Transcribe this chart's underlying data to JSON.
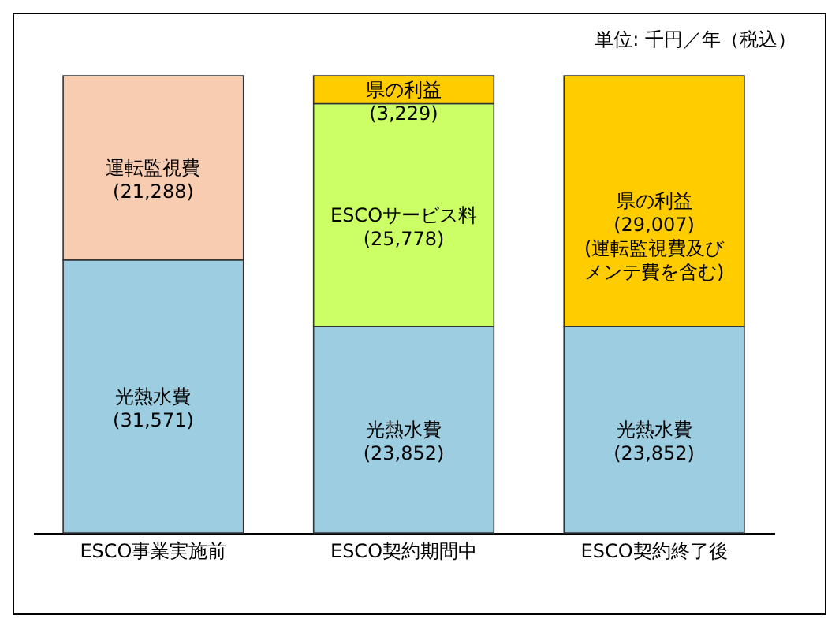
{
  "chart_data": {
    "type": "bar",
    "stacked": true,
    "tick_labels": "x",
    "legend": false,
    "categories": [
      "ESCO事業実施前",
      "ESCO契約期間中",
      "ESCO契約終了後"
    ],
    "series": [
      {
        "name": "光熱水費",
        "color": "#9ccde0",
        "values": [
          31571,
          23852,
          23852
        ],
        "value_labels": [
          "(31,571)",
          "(23,852)",
          "(23,852)"
        ]
      },
      {
        "name": "運転監視費",
        "color": "#f8ccb0",
        "values": [
          21288,
          null,
          null
        ],
        "value_labels": [
          "(21,288)",
          null,
          null
        ]
      },
      {
        "name": "ESCOサービス料",
        "color": "#ccff66",
        "values": [
          null,
          25778,
          null
        ],
        "value_labels": [
          null,
          "(25,778)",
          null
        ]
      },
      {
        "name": "県の利益",
        "color": "#ffcc00",
        "values": [
          null,
          3229,
          29007
        ],
        "value_labels": [
          null,
          "(3,229)",
          "(29,007)"
        ]
      }
    ],
    "annotations": [
      "単位: 千円／年（税込）",
      "(運転監視費及びメンテ費を含む)"
    ]
  }
}
